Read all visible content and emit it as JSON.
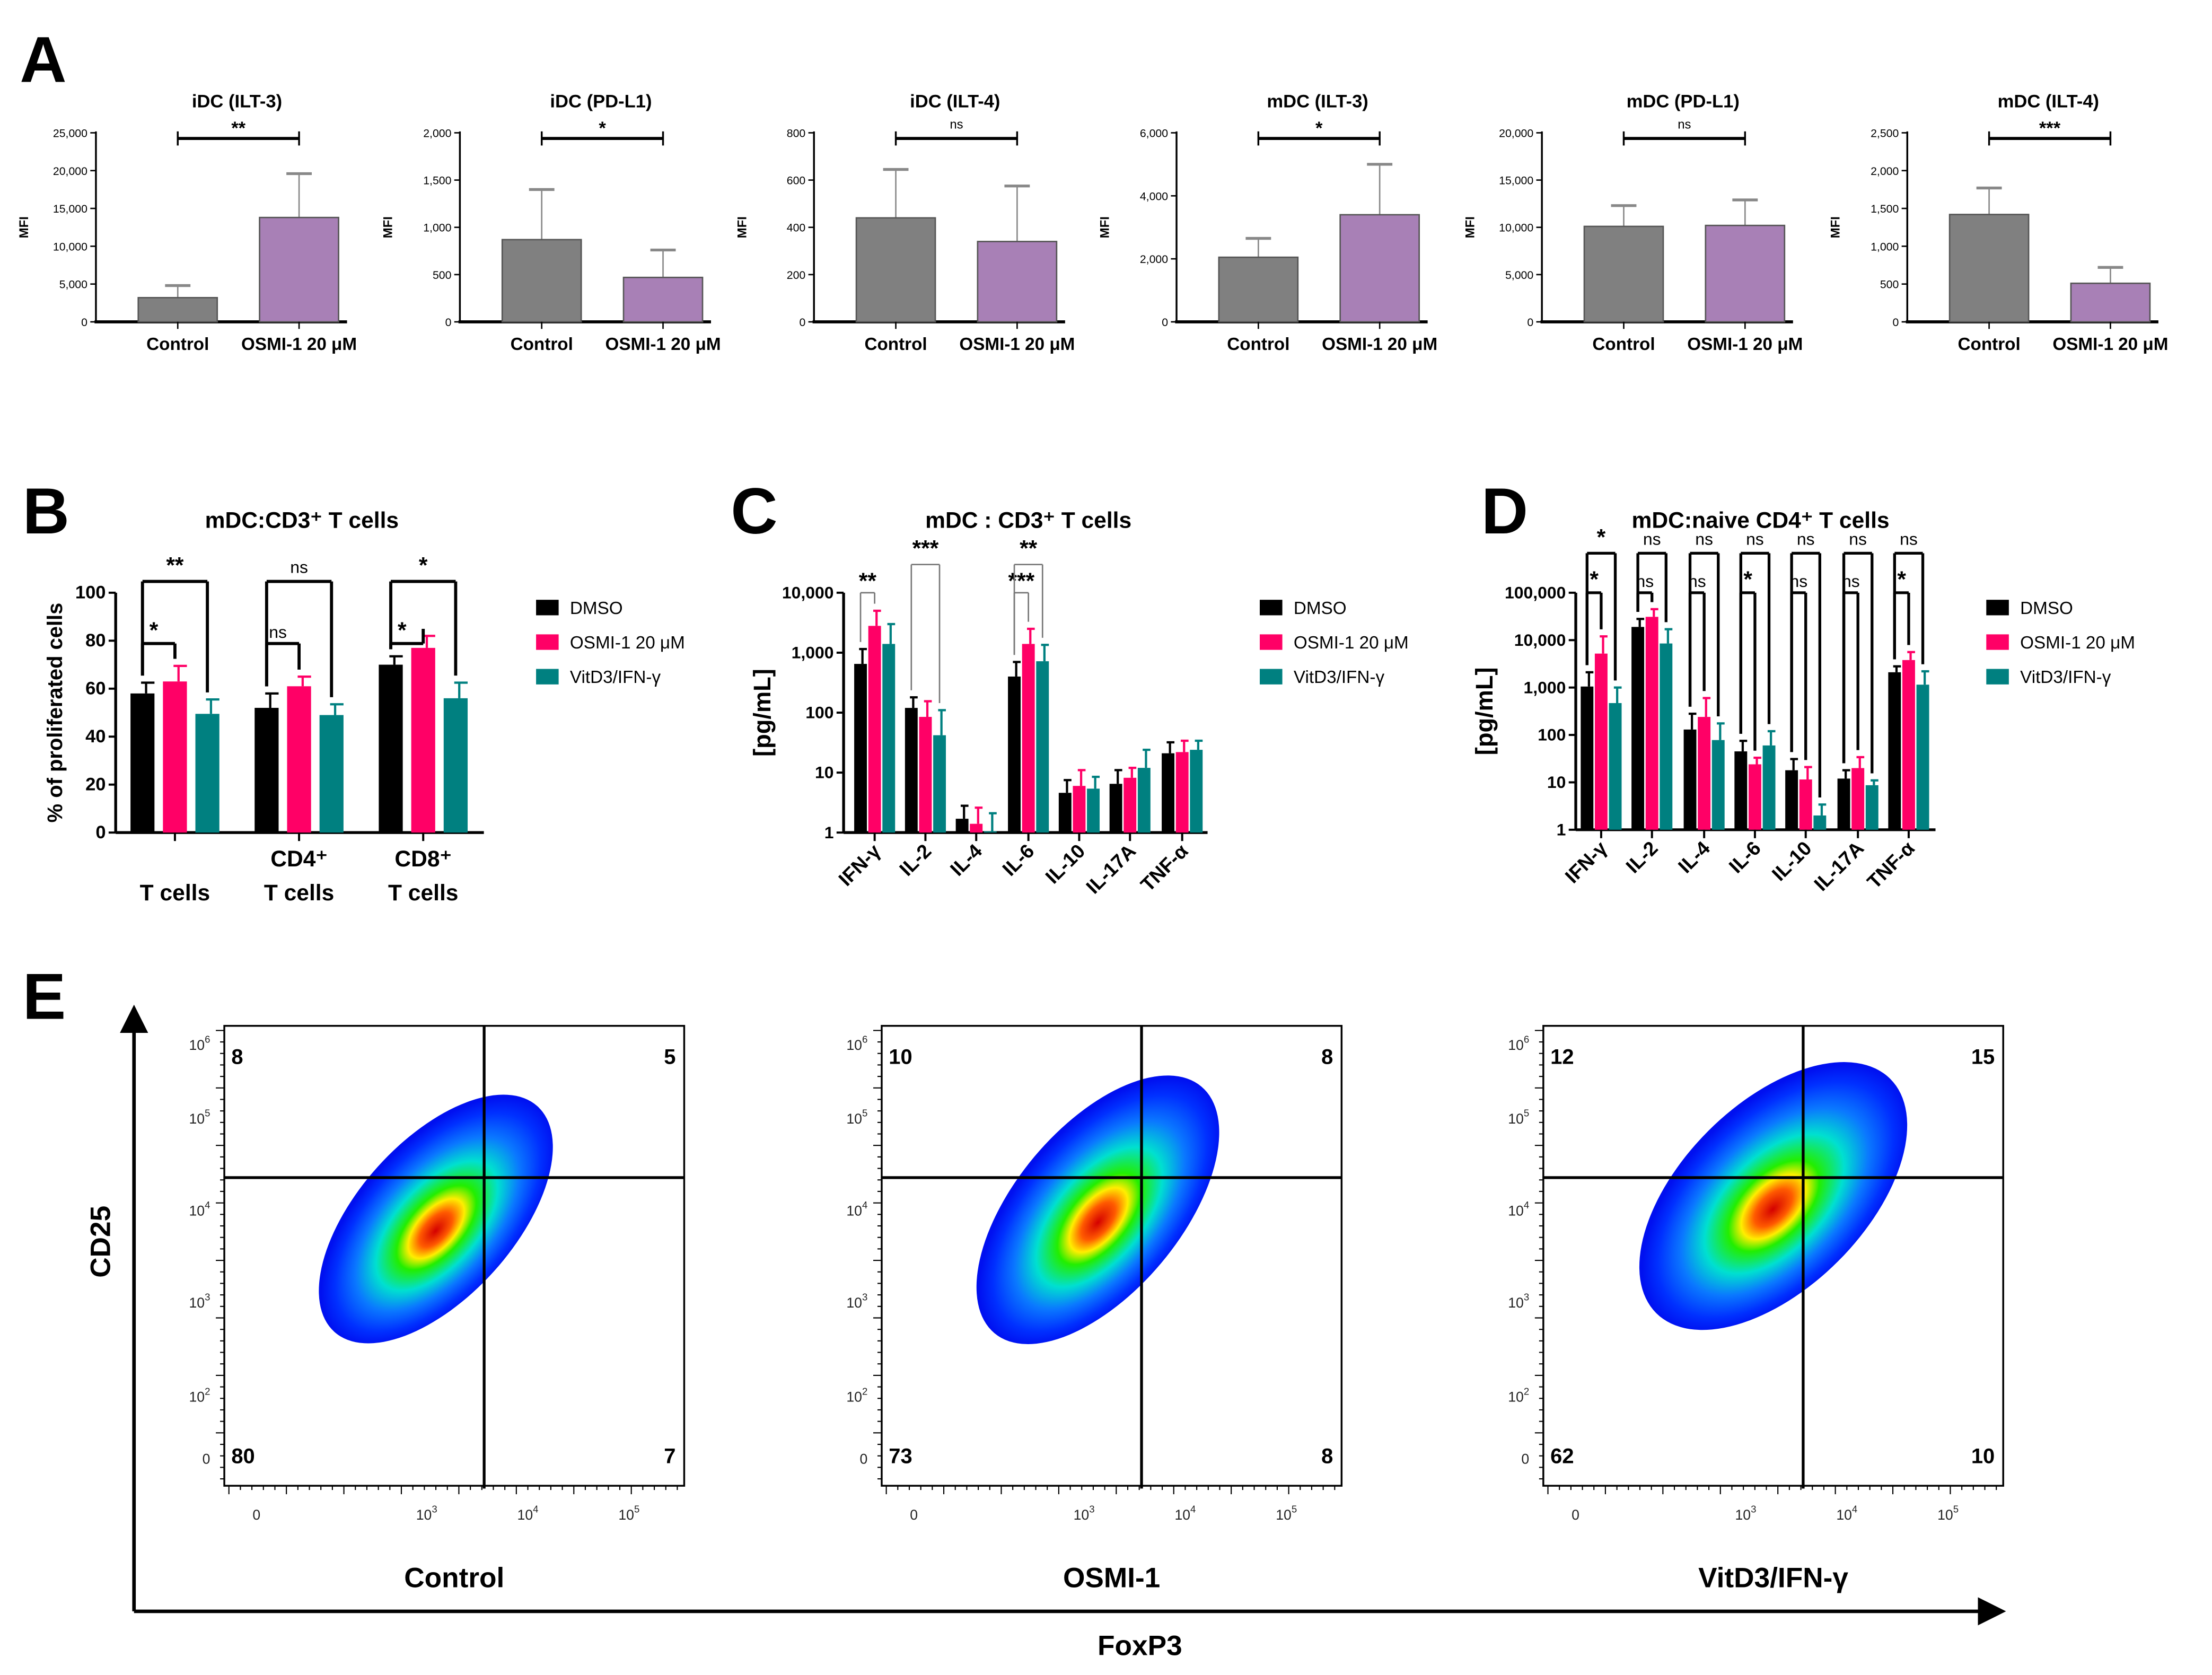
{
  "panel_letters": [
    "A",
    "B",
    "C",
    "D",
    "E"
  ],
  "colors": {
    "control": "#808080",
    "osmi_purple": "#a880b6",
    "dmso": "#000000",
    "osmi": "#ff0066",
    "vitd": "#008080"
  },
  "chart_data": [
    {
      "type": "bar",
      "title": "iDC (ILT-3)",
      "ylabel": "MFI",
      "categories": [
        "Control",
        "OSMI-1 20 μM"
      ],
      "values": [
        3200,
        13800
      ],
      "error_upper": [
        4800,
        19600
      ],
      "ylim": [
        0,
        25000
      ],
      "yticks": [
        0,
        5000,
        10000,
        15000,
        20000,
        25000
      ],
      "ytick_labels": [
        "0",
        "5,000",
        "10,000",
        "15,000",
        "20,000",
        "25,000"
      ],
      "significance": "**"
    },
    {
      "type": "bar",
      "title": "iDC (PD-L1)",
      "ylabel": "MFI",
      "categories": [
        "Control",
        "OSMI-1 20 μM"
      ],
      "values": [
        870,
        470
      ],
      "error_upper": [
        1400,
        760
      ],
      "ylim": [
        0,
        2000
      ],
      "yticks": [
        0,
        500,
        1000,
        1500,
        2000
      ],
      "ytick_labels": [
        "0",
        "500",
        "1,000",
        "1,500",
        "2,000"
      ],
      "significance": "*"
    },
    {
      "type": "bar",
      "title": "iDC (ILT-4)",
      "ylabel": "MFI",
      "categories": [
        "Control",
        "OSMI-1 20 μM"
      ],
      "values": [
        440,
        340
      ],
      "error_upper": [
        645,
        575
      ],
      "ylim": [
        0,
        800
      ],
      "yticks": [
        0,
        200,
        400,
        600,
        800
      ],
      "ytick_labels": [
        "0",
        "200",
        "400",
        "600",
        "800"
      ],
      "significance": "ns"
    },
    {
      "type": "bar",
      "title": "mDC (ILT-3)",
      "ylabel": "MFI",
      "categories": [
        "Control",
        "OSMI-1 20 μM"
      ],
      "values": [
        2050,
        3400
      ],
      "error_upper": [
        2650,
        5000
      ],
      "ylim": [
        0,
        6000
      ],
      "yticks": [
        0,
        2000,
        4000,
        6000
      ],
      "ytick_labels": [
        "0",
        "2,000",
        "4,000",
        "6,000"
      ],
      "significance": "*"
    },
    {
      "type": "bar",
      "title": "mDC (PD-L1)",
      "ylabel": "MFI",
      "categories": [
        "Control",
        "OSMI-1 20 μM"
      ],
      "values": [
        10100,
        10200
      ],
      "error_upper": [
        12300,
        12900
      ],
      "ylim": [
        0,
        20000
      ],
      "yticks": [
        0,
        5000,
        10000,
        15000,
        20000
      ],
      "ytick_labels": [
        "0",
        "5,000",
        "10,000",
        "15,000",
        "20,000"
      ],
      "significance": "ns"
    },
    {
      "type": "bar",
      "title": "mDC (ILT-4)",
      "ylabel": "MFI",
      "categories": [
        "Control",
        "OSMI-1 20 μM"
      ],
      "values": [
        1420,
        510
      ],
      "error_upper": [
        1770,
        720
      ],
      "ylim": [
        0,
        2500
      ],
      "yticks": [
        0,
        500,
        1000,
        1500,
        2000,
        2500
      ],
      "ytick_labels": [
        "0",
        "500",
        "1,000",
        "1,500",
        "2,000",
        "2,500"
      ],
      "significance": "***"
    },
    {
      "type": "bar",
      "title": "mDC:CD3⁺ T cells",
      "ylabel": "% of proliferated cells",
      "categories": [
        [
          "",
          "T cells"
        ],
        [
          "CD4⁺",
          "T cells"
        ],
        [
          "CD8⁺",
          "T cells"
        ]
      ],
      "legend": [
        "DMSO",
        "OSMI-1 20 μM",
        "VitD3/IFN-γ"
      ],
      "legend_position": "right",
      "series": [
        {
          "name": "DMSO",
          "values": [
            58,
            52,
            70
          ],
          "error_upper": [
            62.5,
            58,
            73.5
          ]
        },
        {
          "name": "OSMI-1 20 μM",
          "values": [
            63,
            61,
            77
          ],
          "error_upper": [
            69.5,
            65,
            82
          ]
        },
        {
          "name": "VitD3/IFN-γ",
          "values": [
            49.5,
            49,
            56
          ],
          "error_upper": [
            55.5,
            53.5,
            62.5
          ]
        }
      ],
      "ylim": [
        0,
        100
      ],
      "yticks": [
        0,
        20,
        40,
        60,
        80,
        100
      ],
      "ytick_labels": [
        "0",
        "20",
        "40",
        "60",
        "80",
        "100"
      ],
      "sig_dmso_vs_osmi": [
        "*",
        "ns",
        "*"
      ],
      "sig_dmso_vs_vitd": [
        "**",
        "ns",
        "*"
      ]
    },
    {
      "type": "bar",
      "title": "mDC : CD3⁺ T cells",
      "ylabel": "[pg/mL]",
      "yscale": "log",
      "categories": [
        "IFN-γ",
        "IL-2",
        "IL-4",
        "IL-6",
        "IL-10",
        "IL-17A",
        "TNF-α"
      ],
      "legend": [
        "DMSO",
        "OSMI-1 20 μM",
        "VitD3/IFN-γ"
      ],
      "legend_position": "right",
      "series": [
        {
          "name": "DMSO",
          "values": [
            650,
            120,
            1.7,
            400,
            4.6,
            6.5,
            21
          ],
          "error_upper": [
            1150,
            180,
            2.8,
            700,
            7.5,
            11,
            32
          ]
        },
        {
          "name": "OSMI-1 20 μM",
          "values": [
            2800,
            85,
            1.4,
            1400,
            6,
            8.2,
            22
          ],
          "error_upper": [
            5000,
            155,
            2.6,
            2500,
            11,
            12,
            34
          ]
        },
        {
          "name": "VitD3/IFN-γ",
          "values": [
            1400,
            42,
            1.05,
            720,
            5.4,
            12,
            24
          ],
          "error_upper": [
            3000,
            110,
            2.1,
            1350,
            8.5,
            24,
            34
          ]
        }
      ],
      "ylim": [
        1,
        10000
      ],
      "yticks": [
        1,
        10,
        100,
        1000,
        10000
      ],
      "ytick_labels": [
        "1",
        "10",
        "100",
        "1,000",
        "10,000"
      ],
      "sig_dmso_vs_osmi": [
        "**",
        "",
        "",
        "***",
        "",
        "",
        ""
      ],
      "sig_dmso_vs_vitd": [
        "",
        "***",
        "",
        "**",
        "",
        "",
        ""
      ]
    },
    {
      "type": "bar",
      "title": "mDC:naive CD4⁺ T cells",
      "ylabel": "[pg/mL]",
      "yscale": "log",
      "categories": [
        "IFN-γ",
        "IL-2",
        "IL-4",
        "IL-6",
        "IL-10",
        "IL-17A",
        "TNF-α"
      ],
      "legend": [
        "DMSO",
        "OSMI-1 20 μM",
        "VitD3/IFN-γ"
      ],
      "legend_position": "right",
      "series": [
        {
          "name": "DMSO",
          "values": [
            1050,
            19000,
            130,
            45,
            18,
            12,
            2100
          ],
          "error_upper": [
            2100,
            28000,
            280,
            75,
            31,
            18,
            2800
          ]
        },
        {
          "name": "OSMI-1 20 μM",
          "values": [
            5200,
            31000,
            240,
            24,
            11.5,
            20,
            3800
          ],
          "error_upper": [
            12000,
            45000,
            600,
            33,
            21,
            34,
            5600
          ]
        },
        {
          "name": "VitD3/IFN-γ",
          "values": [
            470,
            8500,
            78,
            60,
            2,
            8.7,
            1150
          ],
          "error_upper": [
            1000,
            17000,
            175,
            120,
            3.4,
            11,
            2200
          ]
        }
      ],
      "ylim": [
        1,
        100000
      ],
      "yticks": [
        1,
        10,
        100,
        1000,
        10000,
        100000
      ],
      "ytick_labels": [
        "1",
        "10",
        "100",
        "1,000",
        "10,000",
        "100,000"
      ],
      "sig_dmso_vs_osmi": [
        "*",
        "ns",
        "ns",
        "*",
        "ns",
        "ns",
        "*"
      ],
      "sig_dmso_vs_vitd": [
        "*",
        "ns",
        "ns",
        "ns",
        "ns",
        "ns",
        "ns"
      ]
    },
    {
      "type": "scatter",
      "subtype": "flow-cytometry density plot",
      "xlabel": "FoxP3",
      "ylabel": "CD25",
      "y_tick_labels": [
        {
          "base": "10",
          "sup": "6"
        },
        {
          "base": "10",
          "sup": "5"
        },
        {
          "base": "10",
          "sup": "4"
        },
        {
          "base": "10",
          "sup": "3"
        },
        {
          "base": "10",
          "sup": "2"
        },
        {
          "base": "0",
          "sup": ""
        }
      ],
      "x_tick_labels": [
        {
          "base": "0",
          "sup": ""
        },
        {
          "base": "10",
          "sup": "3"
        },
        {
          "base": "10",
          "sup": "4"
        },
        {
          "base": "10",
          "sup": "5"
        }
      ],
      "plots": [
        {
          "label": "Control",
          "quadrants": {
            "upper_left": "8",
            "upper_right": "5",
            "lower_left": "80",
            "lower_right": "7"
          }
        },
        {
          "label": "OSMI-1",
          "quadrants": {
            "upper_left": "10",
            "upper_right": "8",
            "lower_left": "73",
            "lower_right": "8"
          }
        },
        {
          "label": "VitD3/IFN-γ",
          "quadrants": {
            "upper_left": "12",
            "upper_right": "15",
            "lower_left": "62",
            "lower_right": "10"
          }
        }
      ]
    }
  ]
}
